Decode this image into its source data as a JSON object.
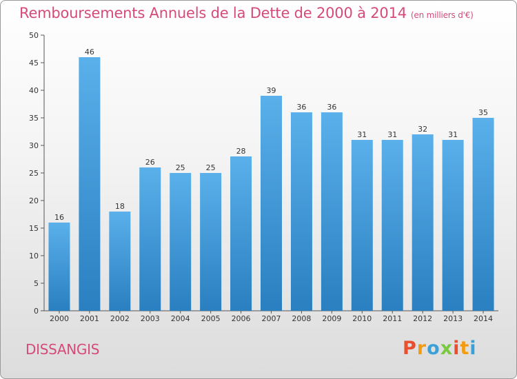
{
  "title": "Remboursements Annuels de la Dette de 2000 à 2014",
  "unit": "(en milliers d'€)",
  "town": "DISSANGIS",
  "logo": "Proxiti",
  "colors": {
    "title": "#d54b78",
    "bar_top": "#5ab0ea",
    "bar_bottom": "#2a7fc0",
    "logo_letters": [
      "#e94f2f",
      "#f39c12",
      "#3aa0d8",
      "#7ac943",
      "#e94f2f",
      "#f39c12",
      "#3aa0d8"
    ]
  },
  "chart_data": {
    "type": "bar",
    "title": "Remboursements Annuels de la Dette de 2000 à 2014",
    "categories": [
      "2000",
      "2001",
      "2002",
      "2003",
      "2004",
      "2005",
      "2006",
      "2007",
      "2008",
      "2009",
      "2010",
      "2011",
      "2012",
      "2013",
      "2014"
    ],
    "values": [
      16,
      46,
      18,
      26,
      25,
      25,
      28,
      39,
      36,
      36,
      31,
      31,
      32,
      31,
      35
    ],
    "ylim": [
      0,
      50
    ],
    "yticks": [
      0,
      5,
      10,
      15,
      20,
      25,
      30,
      35,
      40,
      45,
      50
    ],
    "grid": false,
    "data_labels": true
  }
}
